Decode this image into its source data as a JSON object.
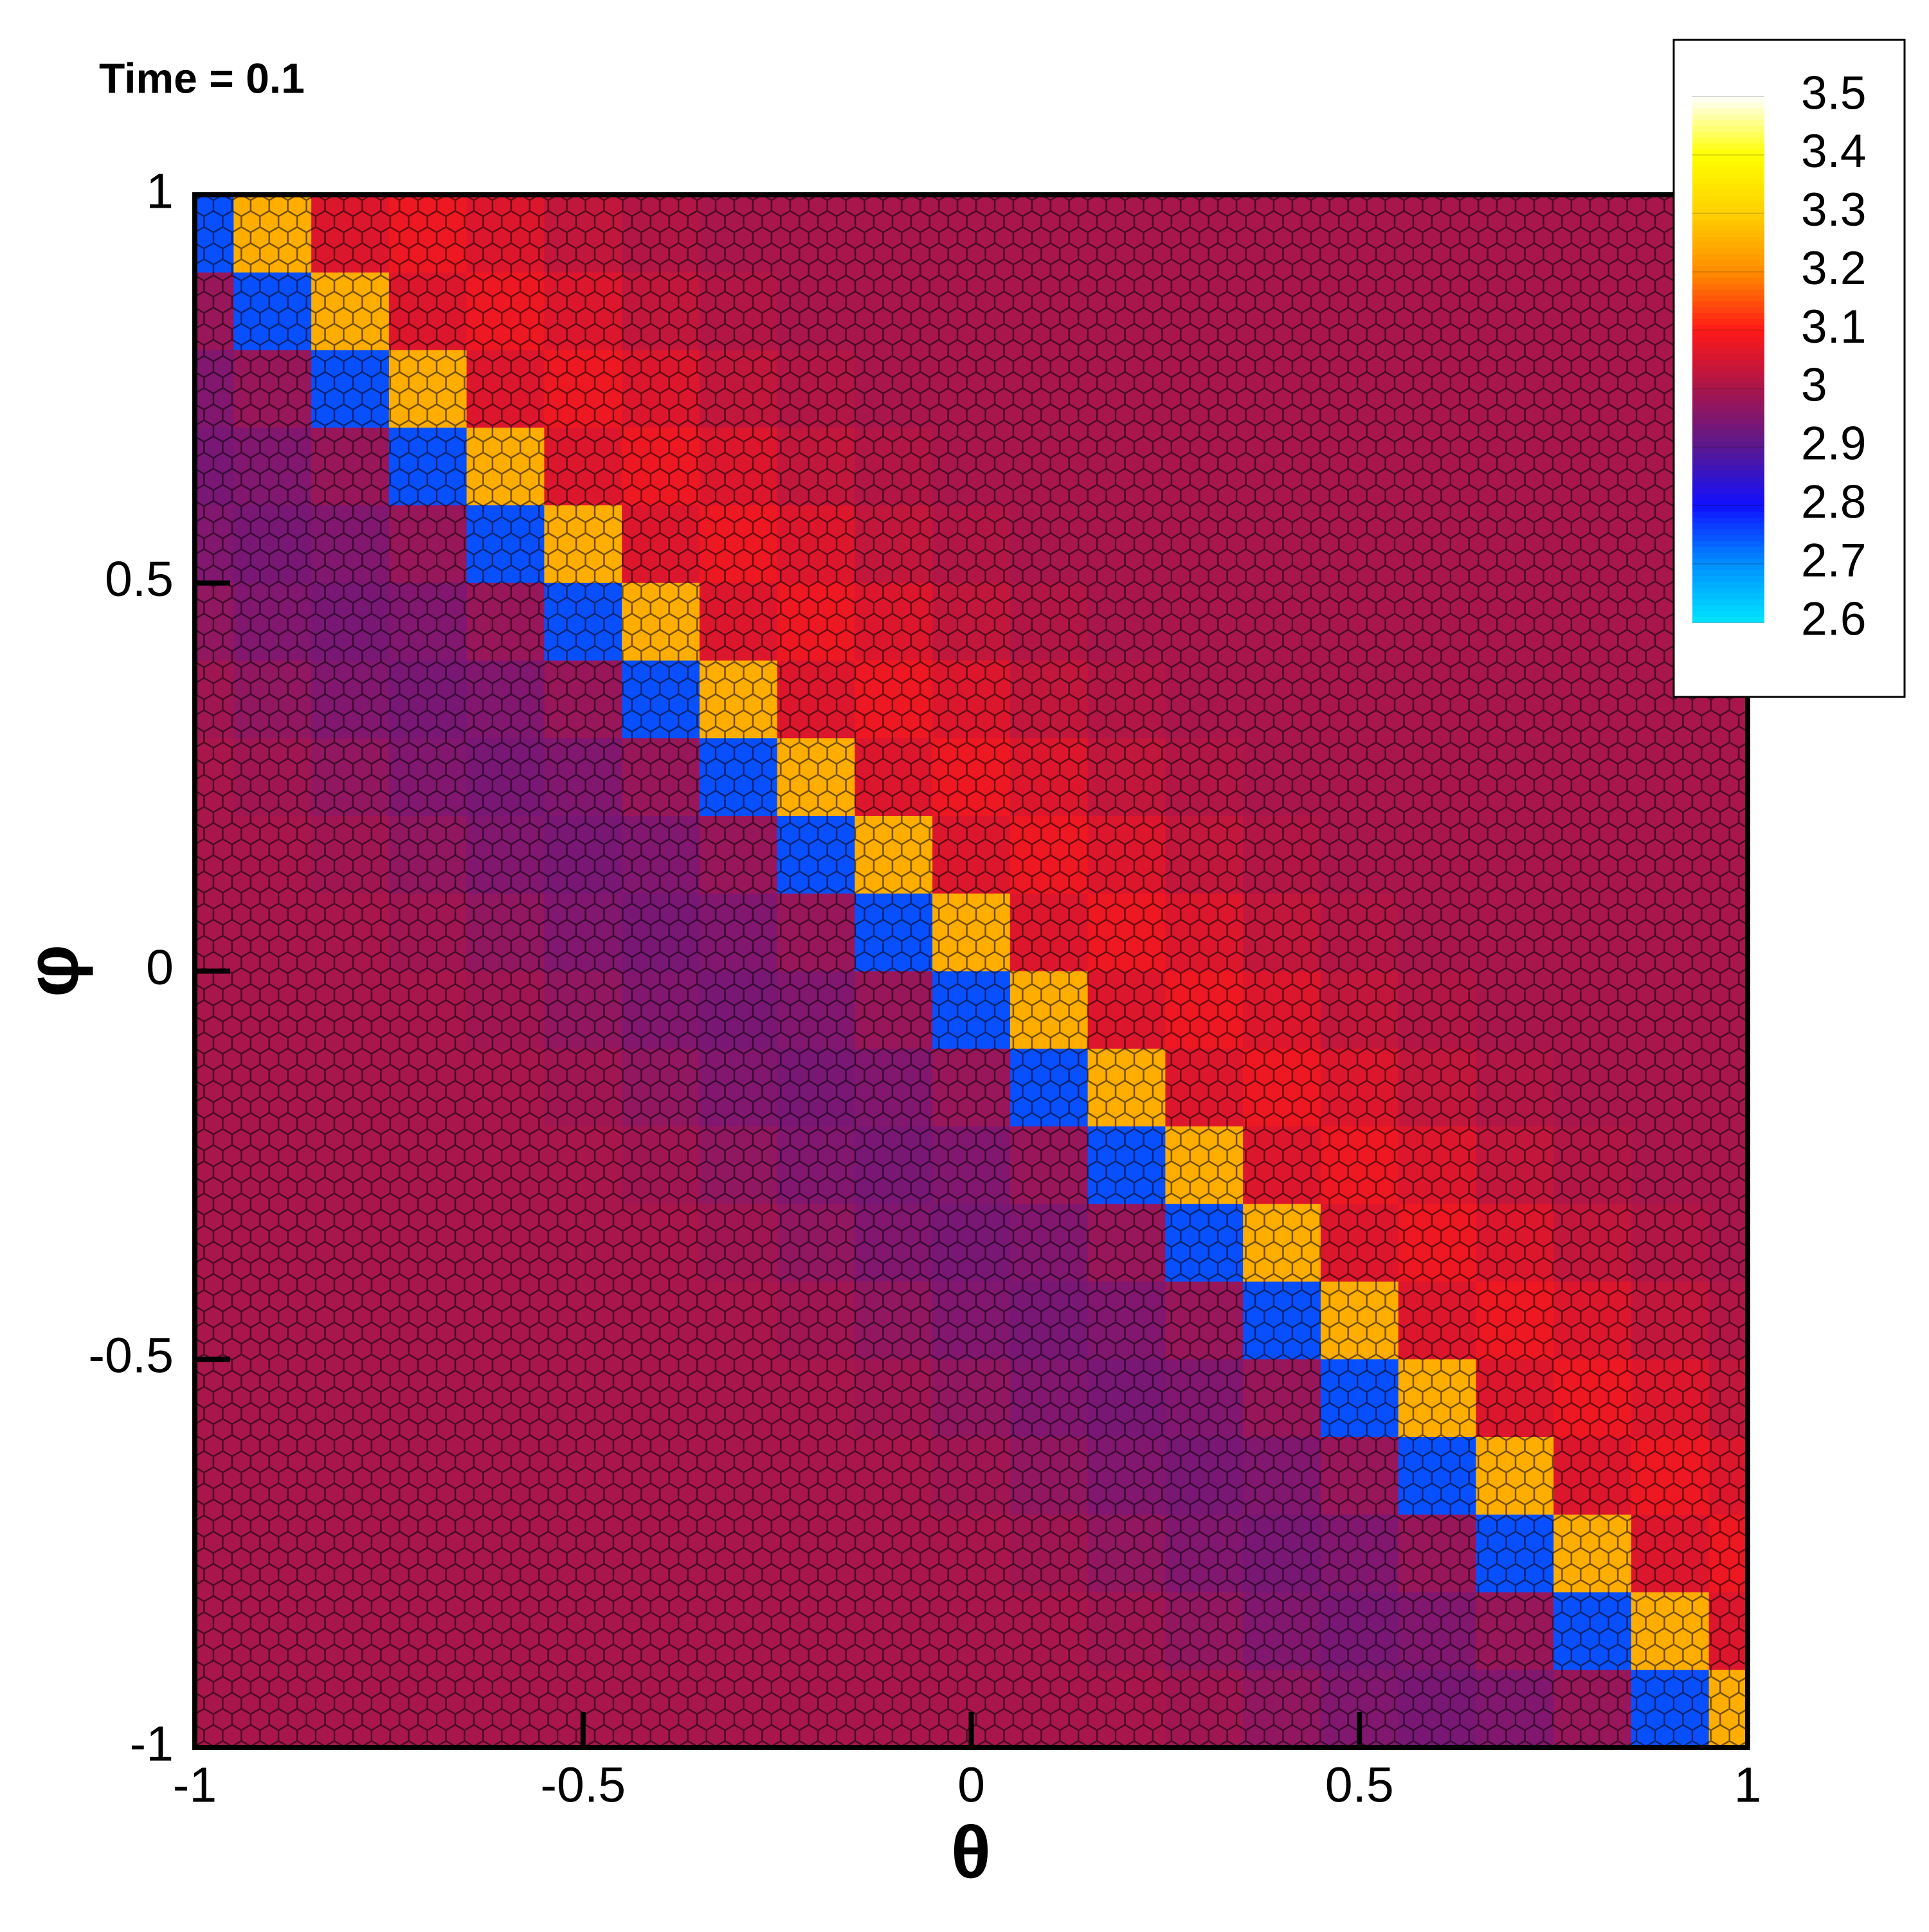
{
  "chart_data": {
    "type": "heatmap",
    "title": "Time = 0.1",
    "xlabel": "θ",
    "ylabel": "φ",
    "xlim": [
      -1,
      1
    ],
    "ylim": [
      -1,
      1
    ],
    "xticks": [
      -1,
      -0.5,
      0,
      0.5,
      1
    ],
    "yticks": [
      -1,
      -0.5,
      0,
      0.5,
      1
    ],
    "x": [
      -1,
      -0.9,
      -0.8,
      -0.7,
      -0.6,
      -0.5,
      -0.4,
      -0.3,
      -0.2,
      -0.1,
      0,
      0.1,
      0.2,
      0.3,
      0.4,
      0.5,
      0.6,
      0.7,
      0.8,
      0.9,
      1
    ],
    "y": [
      0.95,
      0.85,
      0.75,
      0.65,
      0.55,
      0.45,
      0.35,
      0.25,
      0.15,
      0.05,
      -0.05,
      -0.15,
      -0.25,
      -0.35,
      -0.45,
      -0.55,
      -0.65,
      -0.75,
      -0.85,
      -0.95
    ],
    "z": [
      [
        2.75,
        3.25,
        3.06,
        3.08,
        3.06,
        3.03,
        3.01,
        3,
        3,
        3,
        3,
        3,
        3,
        3,
        3,
        3,
        3,
        3,
        3,
        3,
        3
      ],
      [
        2.98,
        2.75,
        3.25,
        3.06,
        3.08,
        3.06,
        3.03,
        3.01,
        3,
        3,
        3,
        3,
        3,
        3,
        3,
        3,
        3,
        3,
        3,
        3,
        3
      ],
      [
        2.95,
        2.98,
        2.75,
        3.25,
        3.06,
        3.08,
        3.06,
        3.03,
        3.01,
        3,
        3,
        3,
        3,
        3,
        3,
        3,
        3,
        3,
        3,
        3,
        3
      ],
      [
        2.94,
        2.95,
        2.98,
        2.75,
        3.25,
        3.06,
        3.08,
        3.06,
        3.03,
        3.01,
        3,
        3,
        3,
        3,
        3,
        3,
        3,
        3,
        3,
        3,
        3
      ],
      [
        2.95,
        2.94,
        2.95,
        2.98,
        2.75,
        3.25,
        3.06,
        3.08,
        3.06,
        3.03,
        3.01,
        3,
        3,
        3,
        3,
        3,
        3,
        3,
        3,
        3,
        3
      ],
      [
        2.97,
        2.95,
        2.94,
        2.95,
        2.98,
        2.75,
        3.25,
        3.06,
        3.08,
        3.06,
        3.03,
        3.01,
        3,
        3,
        3,
        3,
        3,
        3,
        3,
        3,
        3
      ],
      [
        2.99,
        2.97,
        2.95,
        2.94,
        2.95,
        2.98,
        2.75,
        3.25,
        3.06,
        3.08,
        3.06,
        3.03,
        3.01,
        3,
        3,
        3,
        3,
        3,
        3,
        3,
        3
      ],
      [
        3,
        2.99,
        2.97,
        2.95,
        2.94,
        2.95,
        2.98,
        2.75,
        3.25,
        3.06,
        3.08,
        3.06,
        3.03,
        3.01,
        3,
        3,
        3,
        3,
        3,
        3,
        3
      ],
      [
        3,
        3,
        2.99,
        2.97,
        2.95,
        2.94,
        2.95,
        2.98,
        2.75,
        3.25,
        3.06,
        3.08,
        3.06,
        3.03,
        3.01,
        3,
        3,
        3,
        3,
        3,
        3
      ],
      [
        3,
        3,
        3,
        2.99,
        2.97,
        2.95,
        2.94,
        2.95,
        2.98,
        2.75,
        3.25,
        3.06,
        3.08,
        3.06,
        3.03,
        3.01,
        3,
        3,
        3,
        3,
        3
      ],
      [
        3,
        3,
        3,
        3,
        2.99,
        2.97,
        2.95,
        2.94,
        2.95,
        2.98,
        2.75,
        3.25,
        3.06,
        3.08,
        3.06,
        3.03,
        3.01,
        3,
        3,
        3,
        3
      ],
      [
        3,
        3,
        3,
        3,
        3,
        2.99,
        2.97,
        2.95,
        2.94,
        2.95,
        2.98,
        2.75,
        3.25,
        3.06,
        3.08,
        3.06,
        3.03,
        3.01,
        3,
        3,
        3
      ],
      [
        3,
        3,
        3,
        3,
        3,
        3,
        2.99,
        2.97,
        2.95,
        2.94,
        2.95,
        2.98,
        2.75,
        3.25,
        3.06,
        3.08,
        3.06,
        3.03,
        3.01,
        3,
        3
      ],
      [
        3,
        3,
        3,
        3,
        3,
        3,
        3,
        2.99,
        2.97,
        2.95,
        2.94,
        2.95,
        2.98,
        2.75,
        3.25,
        3.06,
        3.08,
        3.06,
        3.03,
        3.01,
        3
      ],
      [
        3,
        3,
        3,
        3,
        3,
        3,
        3,
        3,
        2.99,
        2.97,
        2.95,
        2.94,
        2.95,
        2.98,
        2.75,
        3.25,
        3.06,
        3.08,
        3.06,
        3.03,
        3.01
      ],
      [
        3,
        3,
        3,
        3,
        3,
        3,
        3,
        3,
        3,
        2.99,
        2.97,
        2.95,
        2.94,
        2.95,
        2.98,
        2.75,
        3.25,
        3.06,
        3.08,
        3.06,
        3.03
      ],
      [
        3,
        3,
        3,
        3,
        3,
        3,
        3,
        3,
        3,
        3,
        2.99,
        2.97,
        2.95,
        2.94,
        2.95,
        2.98,
        2.75,
        3.25,
        3.06,
        3.08,
        3.06
      ],
      [
        3,
        3,
        3,
        3,
        3,
        3,
        3,
        3,
        3,
        3,
        3,
        2.99,
        2.97,
        2.95,
        2.94,
        2.95,
        2.98,
        2.75,
        3.25,
        3.06,
        3.08
      ],
      [
        3,
        3,
        3,
        3,
        3,
        3,
        3,
        3,
        3,
        3,
        3,
        3,
        2.99,
        2.97,
        2.95,
        2.94,
        2.95,
        2.98,
        2.75,
        3.25,
        3.06
      ],
      [
        3,
        3,
        3,
        3,
        3,
        3,
        3,
        3,
        3,
        3,
        3,
        3,
        3,
        2.99,
        2.97,
        2.95,
        2.94,
        2.95,
        2.98,
        2.75,
        3.25
      ]
    ],
    "colorbar": {
      "ticks": [
        2.6,
        2.7,
        2.8,
        2.9,
        3,
        3.1,
        3.2,
        3.3,
        3.4,
        3.5
      ],
      "colors": [
        "#00e5ff",
        "#0090ff",
        "#1010ff",
        "#5a1890",
        "#a8164c",
        "#ff1818",
        "#ff8c00",
        "#ffd000",
        "#ffff00",
        "#ffffff"
      ]
    }
  }
}
